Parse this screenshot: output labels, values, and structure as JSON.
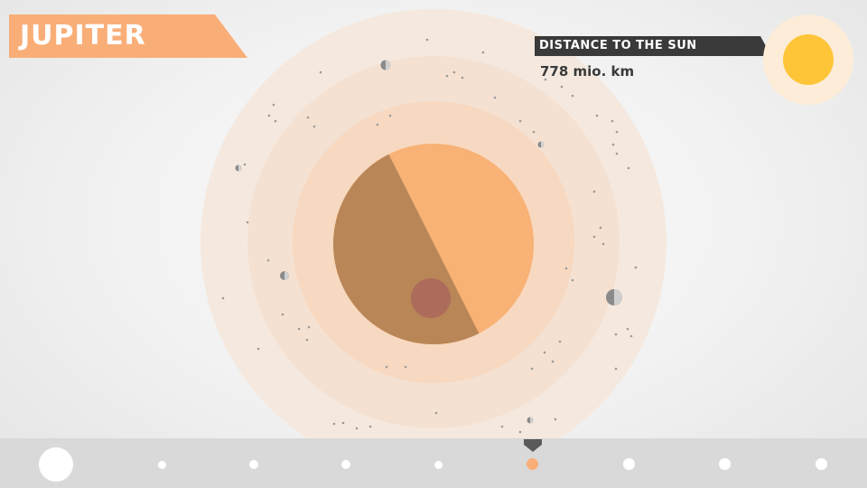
{
  "planet": {
    "name": "JUPITER",
    "banner_color": "#f9ae78"
  },
  "distance": {
    "label": "DISTANCE TO THE SUN",
    "value": "778 mio. km",
    "banner_color": "#3a3a3a"
  },
  "colors": {
    "planet_light": "#f8b276",
    "planet_dark": "#b98657",
    "great_red_spot": "#ad6b5b",
    "ring_outer": "#f5e9df",
    "ring_middle": "#f5e1d1",
    "ring_inner": "#f7d8c0",
    "sun_core": "#ffc539",
    "sun_glow": "#fdedd8",
    "nav_active": "#f9ae78",
    "nav_inactive": "#ffffff"
  },
  "navigation": {
    "planets": [
      "sun",
      "mercury",
      "venus",
      "earth",
      "mars",
      "jupiter",
      "saturn",
      "uranus",
      "neptune"
    ],
    "active": "jupiter"
  }
}
